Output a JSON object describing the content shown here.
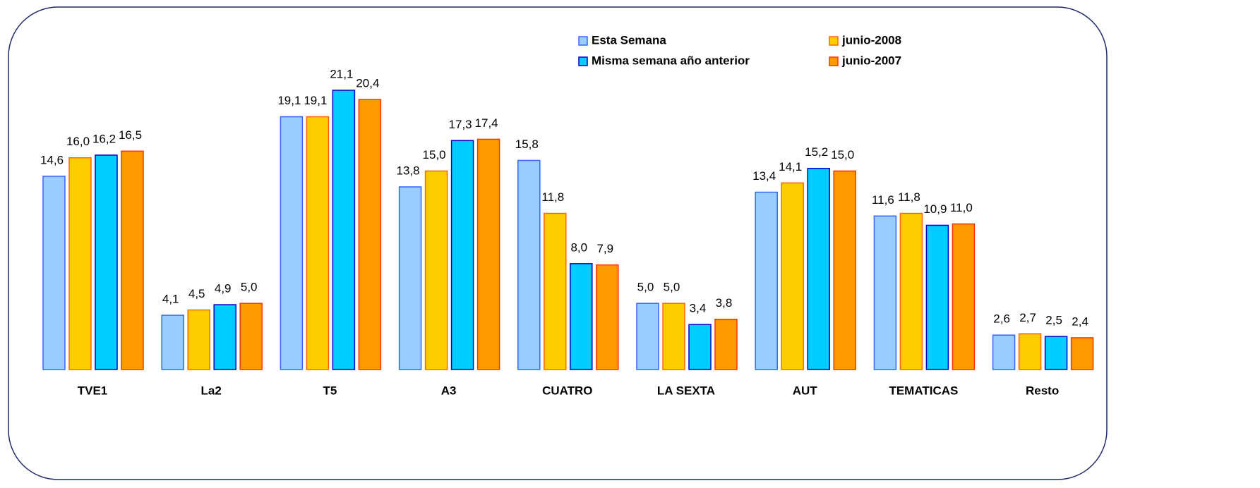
{
  "chart_data": {
    "type": "bar",
    "categories": [
      "TVE1",
      "La2",
      "T5",
      "A3",
      "CUATRO",
      "LA SEXTA",
      "AUT",
      "TEMATICAS",
      "Resto"
    ],
    "series": [
      {
        "name": "Esta Semana",
        "color": "#99ccff",
        "border": "#3366ff",
        "values": [
          14.6,
          4.1,
          19.1,
          13.8,
          15.8,
          5.0,
          13.4,
          11.6,
          2.6
        ],
        "value_labels": [
          "14,6",
          "4,1",
          "19,1",
          "13,8",
          "15,8",
          "5,0",
          "13,4",
          "11,6",
          "2,6"
        ]
      },
      {
        "name": "junio-2008",
        "color": "#ffcc00",
        "border": "#ff6600",
        "values": [
          16.0,
          4.5,
          19.1,
          15.0,
          11.8,
          5.0,
          14.1,
          11.8,
          2.7
        ],
        "value_labels": [
          "16,0",
          "4,5",
          "19,1",
          "15,0",
          "11,8",
          "5,0",
          "14,1",
          "11,8",
          "2,7"
        ]
      },
      {
        "name": "Misma semana año anterior",
        "color": "#00ccff",
        "border": "#0000cc",
        "values": [
          16.2,
          4.9,
          21.1,
          17.3,
          8.0,
          3.4,
          15.2,
          10.9,
          2.5
        ],
        "value_labels": [
          "16,2",
          "4,9",
          "21,1",
          "17,3",
          "8,0",
          "3,4",
          "15,2",
          "10,9",
          "2,5"
        ]
      },
      {
        "name": "junio-2007",
        "color": "#ff9900",
        "border": "#ff3300",
        "values": [
          16.5,
          5.0,
          20.4,
          17.4,
          7.9,
          3.8,
          15.0,
          11.0,
          2.4
        ],
        "value_labels": [
          "16,5",
          "5,0",
          "20,4",
          "17,4",
          "7,9",
          "3,8",
          "15,0",
          "11,0",
          "2,4"
        ]
      }
    ]
  }
}
